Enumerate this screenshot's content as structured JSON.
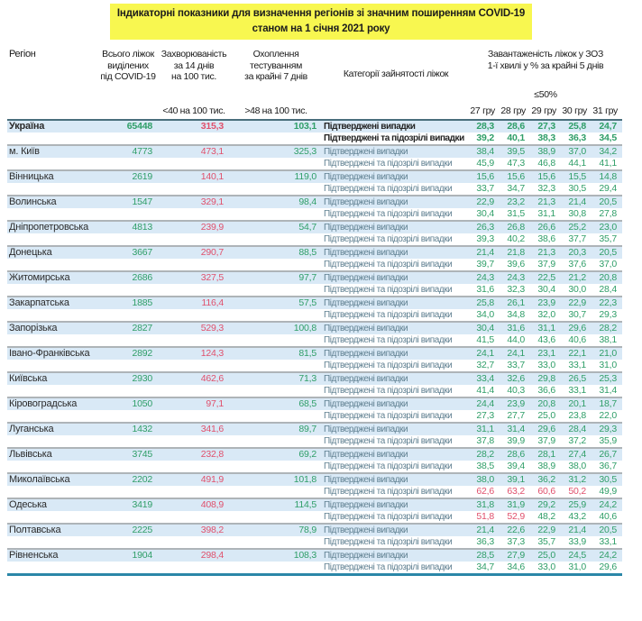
{
  "title": {
    "line1": "Індикаторні показники для визначення регіонів зі значним поширенням COVID-19",
    "line2": "станом на 1 січня 2021 року"
  },
  "header": {
    "region": "Регіон",
    "beds": "Всього ліжок\nвиділених\nпід COVID-19",
    "incidence": "Захворюваність\nза 14 днів\nна 100 тис.",
    "testing": "Охоплення\nтестуванням\nза крайні 7 днів",
    "categories": "Категорії зайнятості ліжок",
    "occupancy": "Завантаженість ліжок у ЗОЗ\n1-ї хвилі у % за крайні 5 днів",
    "occupancy_threshold": "≤50%",
    "incidence_threshold": "<40 на 100 тис.",
    "testing_threshold": ">48 на 100 тис.",
    "dates": [
      "27 гру",
      "28 гру",
      "29 гру",
      "30 гру",
      "31 гру"
    ]
  },
  "category_labels": {
    "confirmed": "Підтверджені випадки",
    "confirmed_suspected": "Підтверджені та підозрілі випадки"
  },
  "colors": {
    "green": "#2f9e68",
    "red": "#e0506c",
    "stripe_blue": "#d9e9f6",
    "title_highlight": "#f8f750",
    "group_separator": "#aeb4b8",
    "header_line": "#4a6e7c",
    "bottom_line": "#2b87a8",
    "category_text": "#5e7f90"
  },
  "occupancy_red_threshold": 50,
  "rows": [
    {
      "region": "Україна",
      "bold": true,
      "beds": "65448",
      "incidence": "315,3",
      "testing": "103,1",
      "confirmed": [
        "28,3",
        "28,6",
        "27,3",
        "25,8",
        "24,7"
      ],
      "suspected": [
        "39,2",
        "40,1",
        "38,3",
        "36,3",
        "34,5"
      ]
    },
    {
      "region": "м. Київ",
      "bold": false,
      "beds": "4773",
      "incidence": "473,1",
      "testing": "325,3",
      "confirmed": [
        "38,4",
        "39,5",
        "38,9",
        "37,0",
        "34,2"
      ],
      "suspected": [
        "45,9",
        "47,3",
        "46,8",
        "44,1",
        "41,1"
      ]
    },
    {
      "region": "Вінницька",
      "bold": false,
      "beds": "2619",
      "incidence": "140,1",
      "testing": "119,0",
      "confirmed": [
        "15,6",
        "15,6",
        "15,6",
        "15,5",
        "14,8"
      ],
      "suspected": [
        "33,7",
        "34,7",
        "32,3",
        "30,5",
        "29,4"
      ]
    },
    {
      "region": "Волинська",
      "bold": false,
      "beds": "1547",
      "incidence": "329,1",
      "testing": "98,4",
      "confirmed": [
        "22,9",
        "23,2",
        "21,3",
        "21,4",
        "20,5"
      ],
      "suspected": [
        "30,4",
        "31,5",
        "31,1",
        "30,8",
        "27,8"
      ]
    },
    {
      "region": "Дніпропетровська",
      "bold": false,
      "beds": "4813",
      "incidence": "239,9",
      "testing": "54,7",
      "confirmed": [
        "26,3",
        "26,8",
        "26,6",
        "25,2",
        "23,0"
      ],
      "suspected": [
        "39,3",
        "40,2",
        "38,6",
        "37,7",
        "35,7"
      ]
    },
    {
      "region": "Донецька",
      "bold": false,
      "beds": "3667",
      "incidence": "290,7",
      "testing": "88,5",
      "confirmed": [
        "21,4",
        "21,8",
        "21,3",
        "20,3",
        "20,5"
      ],
      "suspected": [
        "39,7",
        "39,6",
        "37,9",
        "37,6",
        "37,0"
      ]
    },
    {
      "region": "Житомирська",
      "bold": false,
      "beds": "2686",
      "incidence": "327,5",
      "testing": "97,7",
      "confirmed": [
        "24,3",
        "24,3",
        "22,5",
        "21,2",
        "20,8"
      ],
      "suspected": [
        "31,6",
        "32,3",
        "30,4",
        "30,0",
        "28,4"
      ]
    },
    {
      "region": "Закарпатська",
      "bold": false,
      "beds": "1885",
      "incidence": "116,4",
      "testing": "57,5",
      "confirmed": [
        "25,8",
        "26,1",
        "23,9",
        "22,9",
        "22,3"
      ],
      "suspected": [
        "34,0",
        "34,8",
        "32,0",
        "30,7",
        "29,3"
      ]
    },
    {
      "region": "Запорізька",
      "bold": false,
      "beds": "2827",
      "incidence": "529,3",
      "testing": "100,8",
      "confirmed": [
        "30,4",
        "31,6",
        "31,1",
        "29,6",
        "28,2"
      ],
      "suspected": [
        "41,5",
        "44,0",
        "43,6",
        "40,6",
        "38,1"
      ]
    },
    {
      "region": "Івано-Франківська",
      "bold": false,
      "beds": "2892",
      "incidence": "124,3",
      "testing": "81,5",
      "confirmed": [
        "24,1",
        "24,1",
        "23,1",
        "22,1",
        "21,0"
      ],
      "suspected": [
        "32,7",
        "33,7",
        "33,0",
        "33,1",
        "31,0"
      ]
    },
    {
      "region": "Київська",
      "bold": false,
      "beds": "2930",
      "incidence": "462,6",
      "testing": "71,3",
      "confirmed": [
        "33,4",
        "32,6",
        "29,8",
        "26,5",
        "25,3"
      ],
      "suspected": [
        "41,4",
        "40,3",
        "36,6",
        "33,1",
        "31,4"
      ]
    },
    {
      "region": "Кіровоградська",
      "bold": false,
      "beds": "1050",
      "incidence": "97,1",
      "testing": "68,5",
      "confirmed": [
        "24,4",
        "23,9",
        "20,8",
        "20,1",
        "18,7"
      ],
      "suspected": [
        "27,3",
        "27,7",
        "25,0",
        "23,8",
        "22,0"
      ]
    },
    {
      "region": "Луганська",
      "bold": false,
      "beds": "1432",
      "incidence": "341,6",
      "testing": "89,7",
      "confirmed": [
        "31,1",
        "31,4",
        "29,6",
        "28,4",
        "29,3"
      ],
      "suspected": [
        "37,8",
        "39,9",
        "37,9",
        "37,2",
        "35,9"
      ]
    },
    {
      "region": "Львівська",
      "bold": false,
      "beds": "3745",
      "incidence": "232,8",
      "testing": "69,2",
      "confirmed": [
        "28,2",
        "28,6",
        "28,1",
        "27,4",
        "26,7"
      ],
      "suspected": [
        "38,5",
        "39,4",
        "38,9",
        "38,0",
        "36,7"
      ]
    },
    {
      "region": "Миколаївська",
      "bold": false,
      "beds": "2202",
      "incidence": "491,9",
      "testing": "101,8",
      "confirmed": [
        "38,0",
        "39,1",
        "36,2",
        "31,2",
        "30,5"
      ],
      "suspected": [
        "62,6",
        "63,2",
        "60,6",
        "50,2",
        "49,9"
      ]
    },
    {
      "region": "Одеська",
      "bold": false,
      "beds": "3419",
      "incidence": "408,9",
      "testing": "114,5",
      "confirmed": [
        "31,8",
        "31,9",
        "29,2",
        "25,9",
        "24,2"
      ],
      "suspected": [
        "51,8",
        "52,9",
        "48,2",
        "43,2",
        "40,6"
      ]
    },
    {
      "region": "Полтавська",
      "bold": false,
      "beds": "2225",
      "incidence": "398,2",
      "testing": "78,9",
      "confirmed": [
        "21,4",
        "22,6",
        "22,9",
        "21,4",
        "20,5"
      ],
      "suspected": [
        "36,3",
        "37,3",
        "35,7",
        "33,9",
        "33,1"
      ]
    },
    {
      "region": "Рівненська",
      "bold": false,
      "beds": "1904",
      "incidence": "298,4",
      "testing": "108,3",
      "confirmed": [
        "28,5",
        "27,9",
        "25,0",
        "24,5",
        "24,2"
      ],
      "suspected": [
        "34,7",
        "34,6",
        "33,0",
        "31,0",
        "29,6"
      ]
    }
  ]
}
